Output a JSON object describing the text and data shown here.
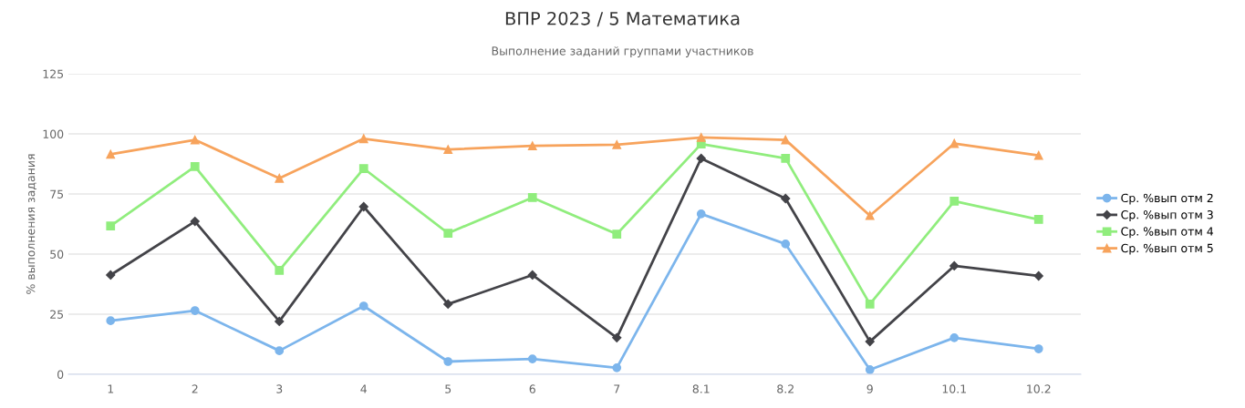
{
  "chart_data": {
    "type": "line",
    "title": "ВПР 2023 / 5 Математика",
    "subtitle": "Выполнение заданий группами участников",
    "ylabel": "% выполнения задания",
    "categories": [
      "1",
      "2",
      "3",
      "4",
      "5",
      "6",
      "7",
      "8.1",
      "8.2",
      "9",
      "10.1",
      "10.2"
    ],
    "series": [
      {
        "name": "Ср. %вып отм 2",
        "color": "#7cb5ec",
        "marker": "circle",
        "values": [
          22.3,
          26.5,
          9.8,
          28.4,
          5.3,
          6.4,
          2.7,
          66.7,
          54.2,
          1.9,
          15.2,
          10.6
        ]
      },
      {
        "name": "Ср. %вып отм 3",
        "color": "#434348",
        "marker": "diamond",
        "values": [
          41.3,
          63.6,
          22,
          69.7,
          29.2,
          41.3,
          15.2,
          89.8,
          73.1,
          13.6,
          45.1,
          40.9
        ]
      },
      {
        "name": "Ср. %вып отм 4",
        "color": "#90ed7d",
        "marker": "square",
        "values": [
          61.7,
          86.4,
          43.2,
          85.6,
          58.7,
          73.5,
          58.3,
          95.8,
          89.8,
          29.2,
          72,
          64.4
        ]
      },
      {
        "name": "Ср. %вып отм 5",
        "color": "#f7a35c",
        "marker": "triangle",
        "values": [
          91.5,
          97.5,
          81.5,
          98,
          93.5,
          95,
          95.5,
          98.5,
          97.5,
          66,
          96,
          91
        ]
      }
    ],
    "ylim": [
      0,
      125
    ],
    "yticks": [
      0,
      25,
      50,
      75,
      100,
      125
    ],
    "grid": "y",
    "legend": "right"
  }
}
